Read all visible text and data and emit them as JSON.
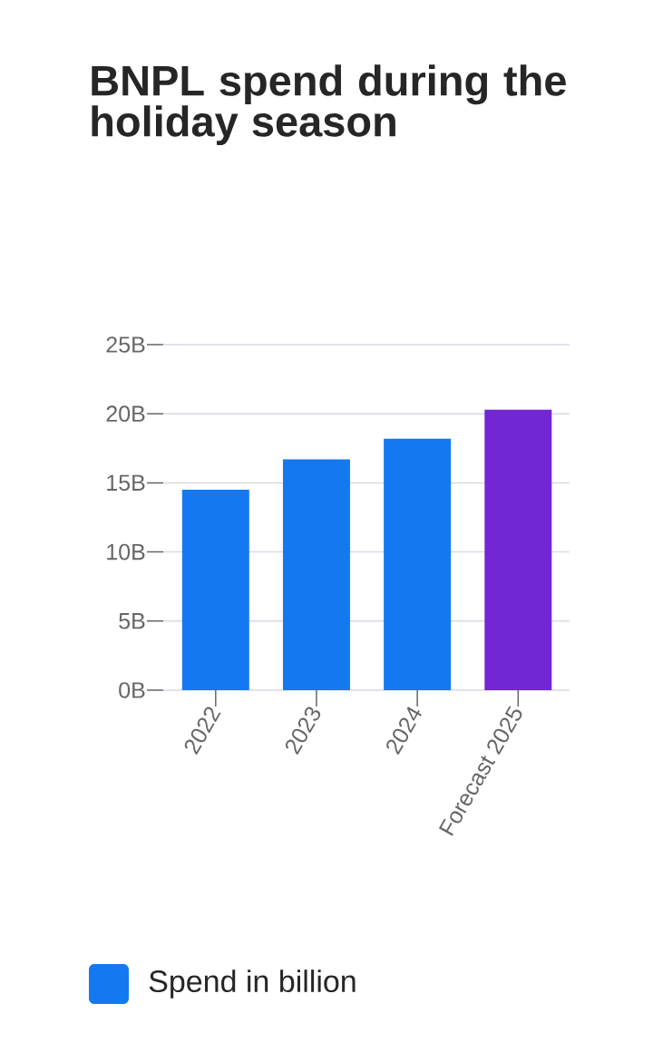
{
  "chart_data": {
    "type": "bar",
    "title": "BNPL spend during the holiday season",
    "categories": [
      "2022",
      "2023",
      "2024",
      "Forecast 2025"
    ],
    "series": [
      {
        "name": "Spend in billion",
        "color": "#1479f0",
        "colors": [
          "#1479f0",
          "#1479f0",
          "#1479f0",
          "#7326d3"
        ],
        "values": [
          14.5,
          16.7,
          18.2,
          20.3
        ]
      }
    ],
    "ylim": [
      0,
      25
    ],
    "yticks": [
      {
        "value": 0,
        "label": "0B"
      },
      {
        "value": 5,
        "label": "5B"
      },
      {
        "value": 10,
        "label": "10B"
      },
      {
        "value": 15,
        "label": "15B"
      },
      {
        "value": 20,
        "label": "20B"
      },
      {
        "value": 25,
        "label": "25B"
      }
    ],
    "grid": "y",
    "legend": "bottom"
  }
}
